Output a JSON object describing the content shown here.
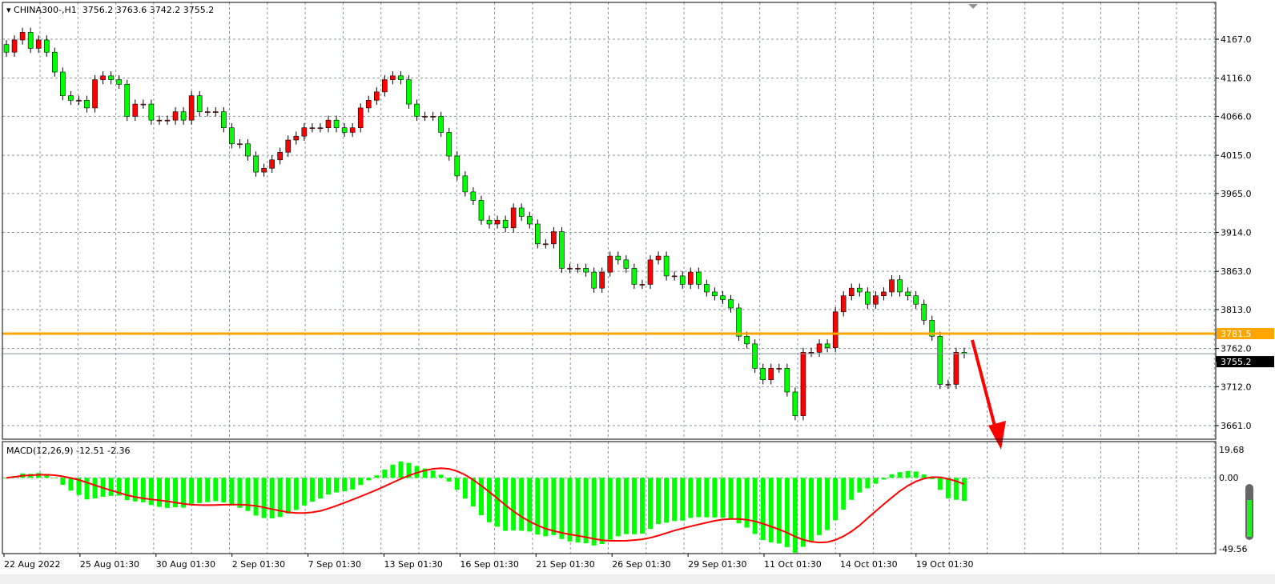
{
  "header": {
    "symbol": "CHINA300-,H1",
    "open": "3756.2",
    "high": "3763.6",
    "low": "3742.2",
    "close": "3755.2"
  },
  "macd": {
    "label": "MACD(12,26,9)",
    "main": "-12.51",
    "signal": "-2.36",
    "axis_ticks": [
      "19.68",
      "0.00",
      "-49.56"
    ],
    "max": 19.68,
    "min": -49.56
  },
  "colors": {
    "bull": "#ff0000",
    "bear": "#00ff00",
    "hline": "#ffa500",
    "arrow": "#ff0000",
    "signal": "#ff0000",
    "hist": "#00ff00",
    "grid": "#8a95a0"
  },
  "price_axis": {
    "ticks": [
      "4167.0",
      "4116.0",
      "4066.0",
      "4015.0",
      "3965.0",
      "3914.0",
      "3863.0",
      "3813.0",
      "3762.0",
      "3712.0",
      "3661.0"
    ],
    "max": 4167,
    "min": 3661
  },
  "hline": {
    "value": 3781.5,
    "label": "3781.5"
  },
  "bid": {
    "value": 3755.2,
    "label": "3755.2"
  },
  "time_axis": [
    "22 Aug 2022",
    "25 Aug 01:30",
    "30 Aug 01:30",
    "2 Sep 01:30",
    "7 Sep 01:30",
    "13 Sep 01:30",
    "16 Sep 01:30",
    "21 Sep 01:30",
    "26 Sep 01:30",
    "29 Sep 01:30",
    "11 Oct 01:30",
    "14 Oct 01:30",
    "19 Oct 01:30"
  ],
  "chart_data": {
    "type": "candlestick",
    "closes": [
      4150,
      4166,
      4176,
      4155,
      4166,
      4150,
      4124,
      4093,
      4087,
      4087,
      4077,
      4114,
      4119,
      4114,
      4108,
      4066,
      4082,
      4082,
      4061,
      4061,
      4061,
      4072,
      4061,
      4093,
      4072,
      4072,
      4072,
      4051,
      4030,
      4030,
      4014,
      3993,
      3998,
      4009,
      4019,
      4035,
      4040,
      4051,
      4051,
      4051,
      4061,
      4051,
      4045,
      4051,
      4077,
      4087,
      4098,
      4114,
      4119,
      4114,
      4082,
      4066,
      4066,
      4066,
      4045,
      4014,
      3988,
      3967,
      3956,
      3930,
      3925,
      3930,
      3920,
      3946,
      3935,
      3925,
      3899,
      3899,
      3915,
      3867,
      3867,
      3867,
      3862,
      3841,
      3862,
      3883,
      3878,
      3867,
      3846,
      3846,
      3878,
      3883,
      3857,
      3857,
      3846,
      3862,
      3846,
      3836,
      3831,
      3826,
      3815,
      3778,
      3768,
      3736,
      3721,
      3736,
      3736,
      3705,
      3674,
      3757,
      3757,
      3768,
      3763,
      3810,
      3831,
      3841,
      3836,
      3820,
      3831,
      3836,
      3852,
      3836,
      3831,
      3820,
      3799,
      3778,
      3715,
      3715,
      3757,
      3755
    ]
  }
}
